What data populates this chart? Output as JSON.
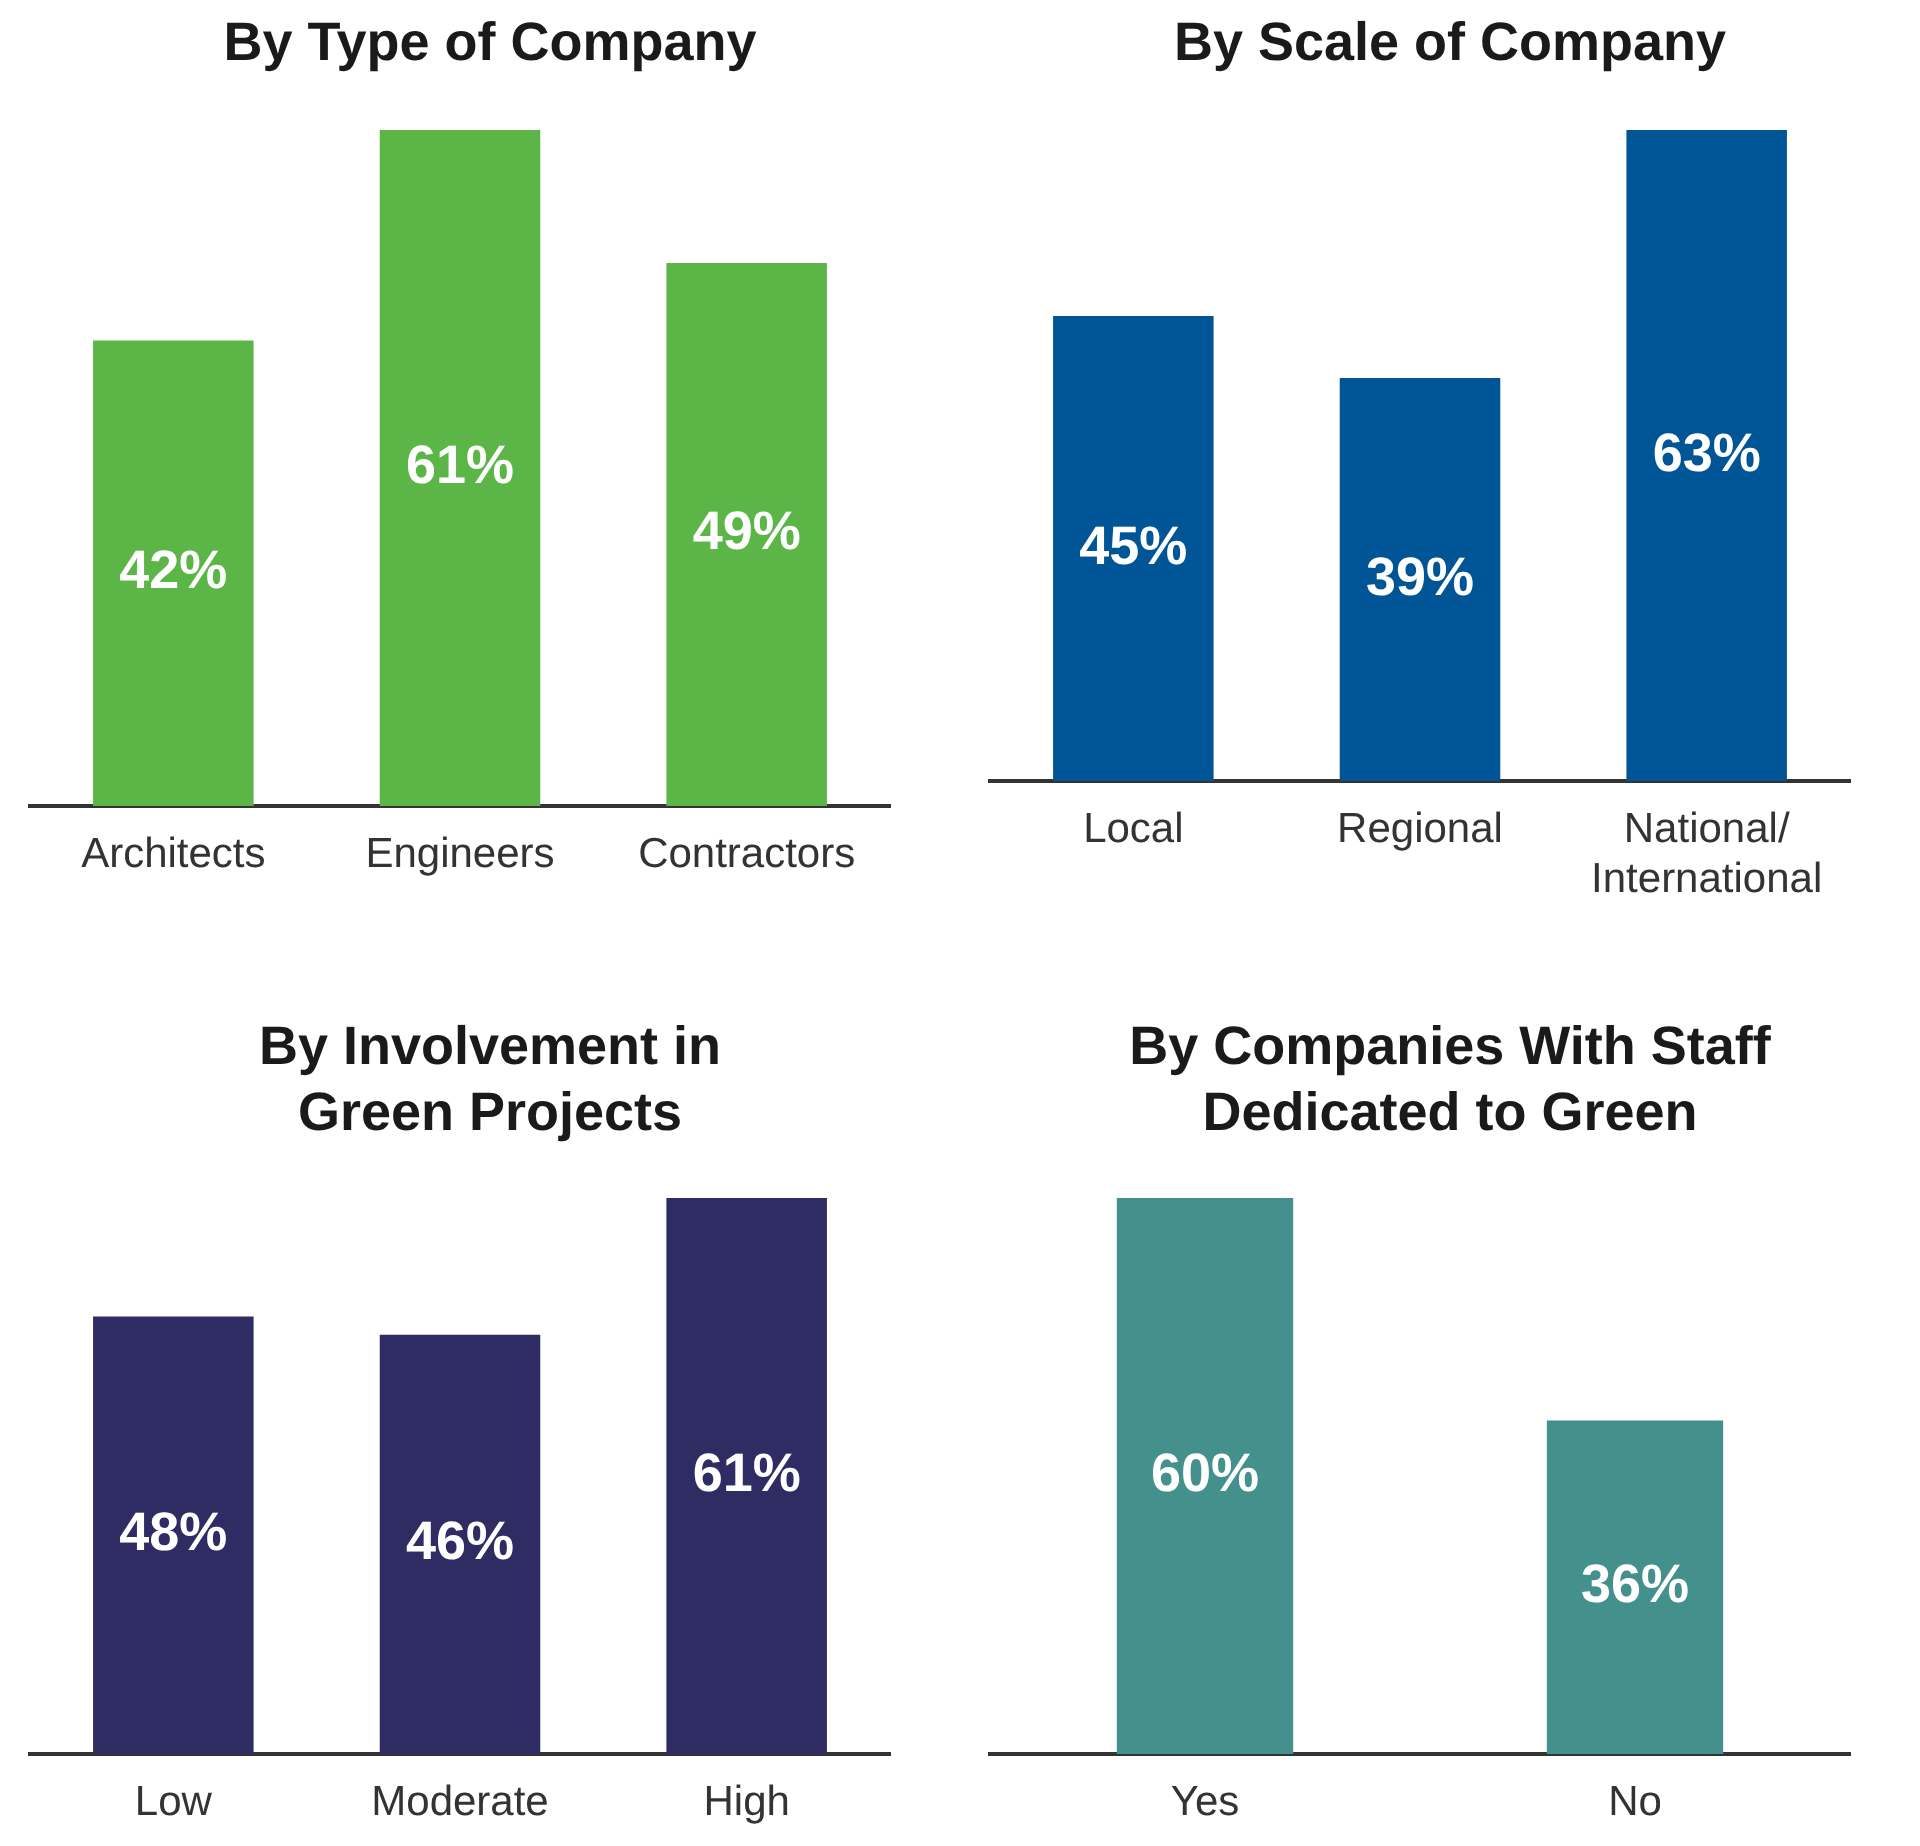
{
  "chart_data": [
    {
      "type": "bar",
      "title": "By Type of Company",
      "categories": [
        "Architects",
        "Engineers",
        "Contractors"
      ],
      "values": [
        42,
        61,
        49
      ],
      "value_labels": [
        "42%",
        "61%",
        "49%"
      ],
      "color": "#5cb547",
      "grid": false,
      "legend": false
    },
    {
      "type": "bar",
      "title": "By Scale of Company",
      "categories": [
        "Local",
        "Regional",
        "National/International"
      ],
      "values": [
        45,
        39,
        63
      ],
      "value_labels": [
        "45%",
        "39%",
        "63%"
      ],
      "color": "#005596",
      "grid": false,
      "legend": false
    },
    {
      "type": "bar",
      "title": "By Involvement in Green Projects",
      "categories": [
        "Low",
        "Moderate",
        "High"
      ],
      "values": [
        48,
        46,
        61
      ],
      "value_labels": [
        "48%",
        "46%",
        "61%"
      ],
      "color": "#2e2c63",
      "grid": false,
      "legend": false
    },
    {
      "type": "bar",
      "title": "By Companies With Staff Dedicated to Green",
      "categories": [
        "Yes",
        "No"
      ],
      "values": [
        60,
        36
      ],
      "value_labels": [
        "60%",
        "36%"
      ],
      "color": "#43908c",
      "grid": false,
      "legend": false
    }
  ]
}
